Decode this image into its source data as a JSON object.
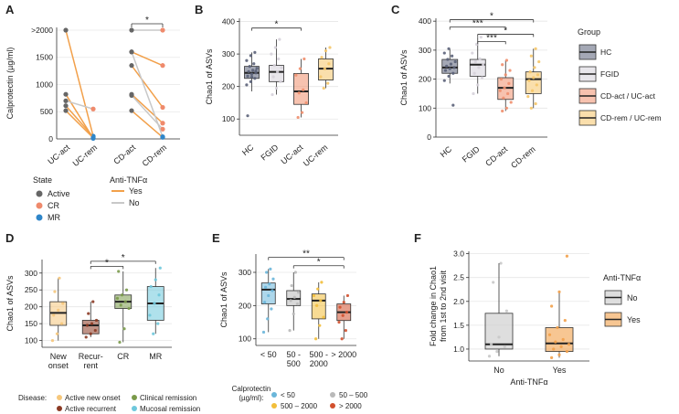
{
  "colors": {
    "HC": "#5a6178",
    "FGID": "#d6d2da",
    "CDact": "#f08f6e",
    "CDrem": "#f5c567",
    "active": "#666666",
    "CR": "#ef8a6c",
    "MR": "#2f86c9",
    "antiYes": "#f2a04a",
    "antiNo": "#c8c8c8",
    "newOnset": "#f6c77b",
    "activeRecurrent": "#8b3a24",
    "clinicalRem": "#7a9a4a",
    "mucosalRem": "#6ec8dc",
    "cal_lt50": "#6ab6da",
    "cal_50_500": "#b9b9b9",
    "cal_500_2000": "#f2be3a",
    "cal_gt2000": "#d2502d",
    "axis": "#333333",
    "grid": "#e6e6e6"
  },
  "panels": {
    "A": {
      "letter": "A",
      "chart_data": {
        "type": "line",
        "ylabel": "Calprotectin (µg/ml)",
        "yticks": [
          ">2000",
          "1500",
          "1000",
          "500",
          "0"
        ],
        "ytick_values": [
          2000,
          1500,
          1000,
          500,
          0
        ],
        "ylim": [
          0,
          2050
        ],
        "categories": [
          "UC-act",
          "UC-rem",
          "CD-act",
          "CD-rem"
        ],
        "pairs": [
          {
            "group": "UC",
            "before": 2000,
            "after": 50,
            "anti": "yes",
            "after_state": "MR"
          },
          {
            "group": "UC",
            "before": 820,
            "after": 10,
            "anti": "yes",
            "after_state": "MR"
          },
          {
            "group": "UC",
            "before": 700,
            "after": 550,
            "anti": "no",
            "after_state": "CR"
          },
          {
            "group": "UC",
            "before": 610,
            "after": 40,
            "anti": "yes",
            "after_state": "MR"
          },
          {
            "group": "UC",
            "before": 520,
            "after": 20,
            "anti": "yes",
            "after_state": "MR"
          },
          {
            "group": "CD",
            "before": 2000,
            "after": 2000,
            "anti": "no",
            "after_state": "CR"
          },
          {
            "group": "CD",
            "before": 1600,
            "after": 1350,
            "anti": "yes",
            "after_state": "CR"
          },
          {
            "group": "CD",
            "before": 1350,
            "after": 580,
            "anti": "yes",
            "after_state": "CR"
          },
          {
            "group": "CD",
            "before": 820,
            "after": 290,
            "anti": "yes",
            "after_state": "CR"
          },
          {
            "group": "CD",
            "before": 800,
            "after": 180,
            "anti": "no",
            "after_state": "CR"
          },
          {
            "group": "CD",
            "before": 520,
            "after": 30,
            "anti": "yes",
            "after_state": "MR"
          },
          {
            "group": "CD",
            "before": 1600,
            "after": 40,
            "anti": "no",
            "after_state": "MR"
          }
        ],
        "brackets": [
          {
            "from": "CD-act",
            "to": "CD-rem",
            "label": "*"
          }
        ]
      },
      "legend_state": {
        "title": "State",
        "items": [
          "Active",
          "CR",
          "MR"
        ]
      },
      "legend_anti": {
        "title": "Anti-TNFα",
        "items": [
          "Yes",
          "No"
        ]
      }
    },
    "B": {
      "letter": "B",
      "chart_data": {
        "type": "box",
        "ylabel": "Chao1 of ASVs",
        "ylim": [
          50,
          410
        ],
        "yticks": [
          100,
          200,
          300,
          400
        ],
        "categories": [
          "HC",
          "FGID",
          "UC-act",
          "UC-rem"
        ],
        "boxes": [
          {
            "name": "HC",
            "color": "HC",
            "min": 185,
            "q1": 225,
            "median": 242,
            "q3": 262,
            "max": 305,
            "points": [
              205,
              215,
              225,
              232,
              238,
              242,
              246,
              250,
              256,
              262,
              270,
              280,
              295,
              305,
              110,
              230,
              248
            ]
          },
          {
            "name": "FGID",
            "color": "FGID",
            "min": 175,
            "q1": 215,
            "median": 245,
            "q3": 265,
            "max": 345,
            "points": [
              175,
              195,
              215,
              230,
              245,
              258,
              265,
              285,
              300,
              320,
              345
            ]
          },
          {
            "name": "UC-act",
            "color": "CDact",
            "min": 105,
            "q1": 145,
            "median": 185,
            "q3": 240,
            "max": 285,
            "points": [
              105,
              120,
              150,
              180,
              190,
              235,
              255,
              285
            ]
          },
          {
            "name": "UC-rem",
            "color": "CDrem",
            "min": 195,
            "q1": 220,
            "median": 255,
            "q3": 285,
            "max": 320,
            "points": [
              195,
              210,
              230,
              255,
              270,
              290,
              310,
              320
            ]
          }
        ],
        "brackets": [
          {
            "from": "HC",
            "to": "UC-act",
            "label": "*",
            "y": 380
          }
        ]
      }
    },
    "C": {
      "letter": "C",
      "chart_data": {
        "type": "box",
        "ylabel": "Chao1 of ASVs",
        "ylim": [
          0,
          410
        ],
        "yticks": [
          0,
          100,
          200,
          300,
          400
        ],
        "categories": [
          "HC",
          "FGID",
          "CD-act",
          "CD-rem"
        ],
        "boxes": [
          {
            "name": "HC",
            "color": "HC",
            "min": 185,
            "q1": 220,
            "median": 240,
            "q3": 268,
            "max": 305,
            "points": [
              195,
              210,
              220,
              230,
              236,
              240,
              245,
              252,
              260,
              268,
              280,
              290,
              305,
              110
            ]
          },
          {
            "name": "FGID",
            "color": "FGID",
            "min": 150,
            "q1": 210,
            "median": 250,
            "q3": 268,
            "max": 345,
            "points": [
              150,
              180,
              205,
              220,
              240,
              250,
              260,
              270,
              290,
              320,
              345
            ]
          },
          {
            "name": "CD-act",
            "color": "CDact",
            "min": 90,
            "q1": 130,
            "median": 170,
            "q3": 205,
            "max": 265,
            "points": [
              90,
              100,
              120,
              135,
              150,
              160,
              170,
              185,
              200,
              215,
              230,
              250,
              265
            ]
          },
          {
            "name": "CD-rem",
            "color": "CDrem",
            "min": 100,
            "q1": 150,
            "median": 200,
            "q3": 225,
            "max": 305,
            "points": [
              100,
              115,
              140,
              160,
              180,
              195,
              205,
              215,
              225,
              240,
              260,
              280,
              305
            ]
          }
        ],
        "brackets": [
          {
            "from": "HC",
            "to": "CD-rem",
            "label": "*",
            "y": 405
          },
          {
            "from": "HC",
            "to": "CD-act",
            "label": "***",
            "y": 380
          },
          {
            "from": "FGID",
            "to": "CD-rem",
            "label": "*",
            "y": 355
          },
          {
            "from": "FGID",
            "to": "CD-act",
            "label": "***",
            "y": 330
          }
        ]
      },
      "legend": {
        "title": "Group",
        "items": [
          {
            "label": "HC",
            "color": "HC"
          },
          {
            "label": "FGID",
            "color": "FGID"
          },
          {
            "label": "CD-act / UC-act",
            "color": "CDact"
          },
          {
            "label": "CD-rem / UC-rem",
            "color": "CDrem"
          }
        ]
      }
    },
    "D": {
      "letter": "D",
      "chart_data": {
        "type": "box",
        "ylabel": "Chao1 of ASVs",
        "ylim": [
          80,
          340
        ],
        "yticks": [
          100,
          150,
          200,
          250,
          300
        ],
        "categories": [
          "New\nonset",
          "Recur-\nrent",
          "CR",
          "MR"
        ],
        "boxes": [
          {
            "name": "New onset",
            "color": "newOnset",
            "min": 100,
            "q1": 145,
            "median": 182,
            "q3": 215,
            "max": 285,
            "points": [
              100,
              120,
              150,
              175,
              190,
              210,
              245,
              285
            ]
          },
          {
            "name": "Recurrent",
            "color": "activeRecurrent",
            "min": 110,
            "q1": 120,
            "median": 145,
            "q3": 160,
            "max": 215,
            "points": [
              110,
              120,
              130,
              145,
              150,
              160,
              180,
              215
            ]
          },
          {
            "name": "CR",
            "color": "clinicalRem",
            "min": 95,
            "q1": 195,
            "median": 215,
            "q3": 235,
            "max": 305,
            "points": [
              95,
              135,
              195,
              205,
              215,
              225,
              235,
              250,
              305
            ]
          },
          {
            "name": "MR",
            "color": "mucosalRem",
            "min": 120,
            "q1": 160,
            "median": 210,
            "q3": 260,
            "max": 315,
            "points": [
              120,
              150,
              175,
              210,
              235,
              260,
              280,
              315
            ]
          }
        ],
        "brackets": [
          {
            "from": "Recur-\nrent",
            "to": "MR",
            "label": "*",
            "y": 335
          },
          {
            "from": "Recur-\nrent",
            "to": "CR",
            "label": "*",
            "y": 320
          }
        ]
      },
      "legend": {
        "title": "Disease:",
        "items": [
          {
            "label": "Active new onset",
            "color": "newOnset"
          },
          {
            "label": "Clinical remission",
            "color": "clinicalRem"
          },
          {
            "label": "Active recurrent",
            "color": "activeRecurrent"
          },
          {
            "label": "Mucosal remission",
            "color": "mucosalRem"
          }
        ]
      }
    },
    "E": {
      "letter": "E",
      "chart_data": {
        "type": "box",
        "ylabel": "Chao1 of ASVs",
        "ylim": [
          80,
          355
        ],
        "yticks": [
          100,
          200,
          300
        ],
        "categories": [
          "< 50",
          "50 -\n500",
          "500 -\n2000",
          "> 2000"
        ],
        "boxes": [
          {
            "name": "< 50",
            "color": "cal_lt50",
            "min": 120,
            "q1": 205,
            "median": 248,
            "q3": 268,
            "max": 310,
            "points": [
              120,
              160,
              190,
              210,
              230,
              245,
              255,
              265,
              280,
              300,
              310
            ]
          },
          {
            "name": "50 - 500",
            "color": "cal_50_500",
            "min": 125,
            "q1": 200,
            "median": 220,
            "q3": 245,
            "max": 300,
            "points": [
              125,
              175,
              205,
              215,
              225,
              240,
              260,
              300
            ]
          },
          {
            "name": "500 - 2000",
            "color": "cal_500_2000",
            "min": 100,
            "q1": 160,
            "median": 215,
            "q3": 235,
            "max": 270,
            "points": [
              100,
              140,
              165,
              200,
              215,
              230,
              250,
              270
            ]
          },
          {
            "name": "> 2000",
            "color": "cal_gt2000",
            "min": 100,
            "q1": 155,
            "median": 180,
            "q3": 205,
            "max": 230,
            "points": [
              100,
              125,
              150,
              170,
              180,
              195,
              210,
              230
            ]
          }
        ],
        "brackets": [
          {
            "from": "< 50",
            "to": "> 2000",
            "label": "**",
            "y": 345
          },
          {
            "from": "50 -\n500",
            "to": "> 2000",
            "label": "*",
            "y": 320
          }
        ]
      },
      "legend": {
        "title": "Calprotectin\n(µg/ml):",
        "items": [
          {
            "label": "< 50",
            "color": "cal_lt50"
          },
          {
            "label": "50 – 500",
            "color": "cal_50_500"
          },
          {
            "label": "500 – 2000",
            "color": "cal_500_2000"
          },
          {
            "label": "> 2000",
            "color": "cal_gt2000"
          }
        ]
      }
    },
    "F": {
      "letter": "F",
      "chart_data": {
        "type": "box",
        "ylabel": "Fold change in Chao1\nfrom 1st to 2nd visit",
        "xlabel": "Anti-TNFα",
        "ylim": [
          0.75,
          3.05
        ],
        "yticks": [
          "1.0",
          "1.5",
          "2.0",
          "2.5",
          "3.0"
        ],
        "ytick_values": [
          1.0,
          1.5,
          2.0,
          2.5,
          3.0
        ],
        "categories": [
          "No",
          "Yes"
        ],
        "boxes": [
          {
            "name": "No",
            "color": "antiNo",
            "min": 0.85,
            "q1": 1.0,
            "median": 1.1,
            "q3": 1.75,
            "max": 2.8,
            "points": [
              0.85,
              0.95,
              1.05,
              1.1,
              1.25,
              1.8,
              2.4,
              2.8
            ]
          },
          {
            "name": "Yes",
            "color": "antiYes",
            "min": 0.82,
            "q1": 0.95,
            "median": 1.12,
            "q3": 1.45,
            "max": 2.2,
            "points": [
              0.82,
              0.88,
              0.95,
              1.0,
              1.05,
              1.1,
              1.15,
              1.2,
              1.3,
              1.45,
              1.6,
              1.9,
              2.2,
              2.95
            ]
          }
        ]
      },
      "legend": {
        "title": "Anti-TNFα",
        "items": [
          {
            "label": "No",
            "color": "antiNo"
          },
          {
            "label": "Yes",
            "color": "antiYes"
          }
        ]
      }
    }
  }
}
